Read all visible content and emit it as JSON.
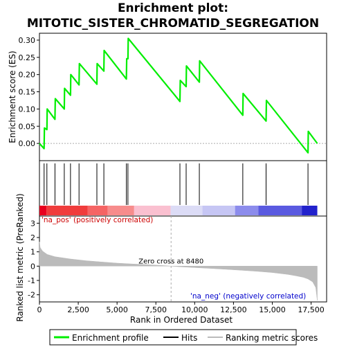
{
  "title_line1": "Enrichment plot:",
  "title_line2": "MITOTIC_SISTER_CHROMATID_SEGREGATION",
  "colors": {
    "es_line": "#00ee00",
    "hits": "#000000",
    "metric_fill": "#bbbbbb",
    "zero_line": "#aaaaaa",
    "pos_label": "#cc0000",
    "neg_label": "#0000cc"
  },
  "chart_data": {
    "type": "line",
    "x_range": [
      0,
      18500
    ],
    "x_ticks": [
      "0",
      "2,500",
      "5,000",
      "7,500",
      "10,000",
      "12,500",
      "15,000",
      "17,500"
    ],
    "x_tick_values": [
      0,
      2500,
      5000,
      7500,
      10000,
      12500,
      15000,
      17500
    ],
    "xlabel": "Rank in Ordered Dataset",
    "es_panel": {
      "ylabel": "Enrichment score (ES)",
      "ylim": [
        -0.05,
        0.32
      ],
      "y_ticks": [
        "0.00",
        "0.05",
        "0.10",
        "0.15",
        "0.20",
        "0.25",
        "0.30"
      ],
      "y_tick_values": [
        0,
        0.05,
        0.1,
        0.15,
        0.2,
        0.25,
        0.3
      ],
      "series": [
        {
          "name": "Enrichment profile",
          "x": [
            0,
            300,
            320,
            480,
            500,
            1000,
            1020,
            1600,
            1620,
            2000,
            2020,
            2550,
            2570,
            3700,
            3720,
            4150,
            4170,
            5600,
            5620,
            5700,
            5720,
            9050,
            9070,
            9450,
            9470,
            10300,
            10320,
            13100,
            13120,
            14600,
            14620,
            17300,
            17320,
            17900
          ],
          "y": [
            0.0,
            -0.015,
            0.045,
            0.04,
            0.1,
            0.07,
            0.13,
            0.1,
            0.16,
            0.14,
            0.2,
            0.17,
            0.232,
            0.172,
            0.232,
            0.21,
            0.27,
            0.187,
            0.246,
            0.246,
            0.305,
            0.122,
            0.183,
            0.165,
            0.225,
            0.178,
            0.24,
            0.082,
            0.145,
            0.065,
            0.125,
            -0.027,
            0.035,
            0.0
          ]
        }
      ]
    },
    "hits": [
      300,
      480,
      1000,
      1600,
      2000,
      2550,
      3700,
      4150,
      5600,
      5700,
      9050,
      9450,
      10300,
      13100,
      14600,
      17300
    ],
    "metric_panel": {
      "ylabel": "Ranked list metric (PreRanked)",
      "ylim": [
        -2.5,
        3.5
      ],
      "y_ticks": [
        "3",
        "2",
        "1",
        "0",
        "-1",
        "-2"
      ],
      "y_tick_values": [
        3,
        2,
        1,
        0,
        -1,
        -2
      ],
      "metric": {
        "x": [
          0,
          50,
          200,
          500,
          1000,
          2000,
          3000,
          4000,
          5000,
          6000,
          7000,
          8000,
          8480,
          9000,
          10000,
          11000,
          12000,
          13000,
          14000,
          15000,
          16000,
          16500,
          17000,
          17300,
          17600,
          17800,
          17900
        ],
        "y": [
          1.7,
          1.3,
          1.05,
          0.82,
          0.66,
          0.5,
          0.38,
          0.29,
          0.21,
          0.15,
          0.1,
          0.04,
          0.0,
          -0.04,
          -0.1,
          -0.16,
          -0.22,
          -0.29,
          -0.36,
          -0.45,
          -0.58,
          -0.67,
          -0.78,
          -0.9,
          -1.1,
          -1.5,
          -2.4
        ]
      },
      "zero_cross_label": "Zero cross at 8480",
      "zero_cross": 8480,
      "pos_label": "'na_pos' (positively correlated)",
      "neg_label": "'na_neg' (negatively correlated)"
    },
    "color_bar": [
      {
        "x0": 0,
        "x1": 450,
        "color": "#e8001e"
      },
      {
        "x0": 450,
        "x1": 3100,
        "color": "#f03c3c"
      },
      {
        "x0": 3100,
        "x1": 4400,
        "color": "#f56464"
      },
      {
        "x0": 4400,
        "x1": 6100,
        "color": "#f78c8c"
      },
      {
        "x0": 6100,
        "x1": 8450,
        "color": "#fac0d0"
      },
      {
        "x0": 8450,
        "x1": 10500,
        "color": "#dcdcf6"
      },
      {
        "x0": 10500,
        "x1": 12600,
        "color": "#c6c6f4"
      },
      {
        "x0": 12600,
        "x1": 14100,
        "color": "#8c8cec"
      },
      {
        "x0": 14100,
        "x1": 16900,
        "color": "#5a5ae0"
      },
      {
        "x0": 16900,
        "x1": 17900,
        "color": "#2222cc"
      }
    ],
    "legend": [
      {
        "label": "Enrichment profile",
        "kind": "line"
      },
      {
        "label": "Hits",
        "kind": "hit"
      },
      {
        "label": "Ranking metric scores",
        "kind": "metric"
      }
    ]
  }
}
